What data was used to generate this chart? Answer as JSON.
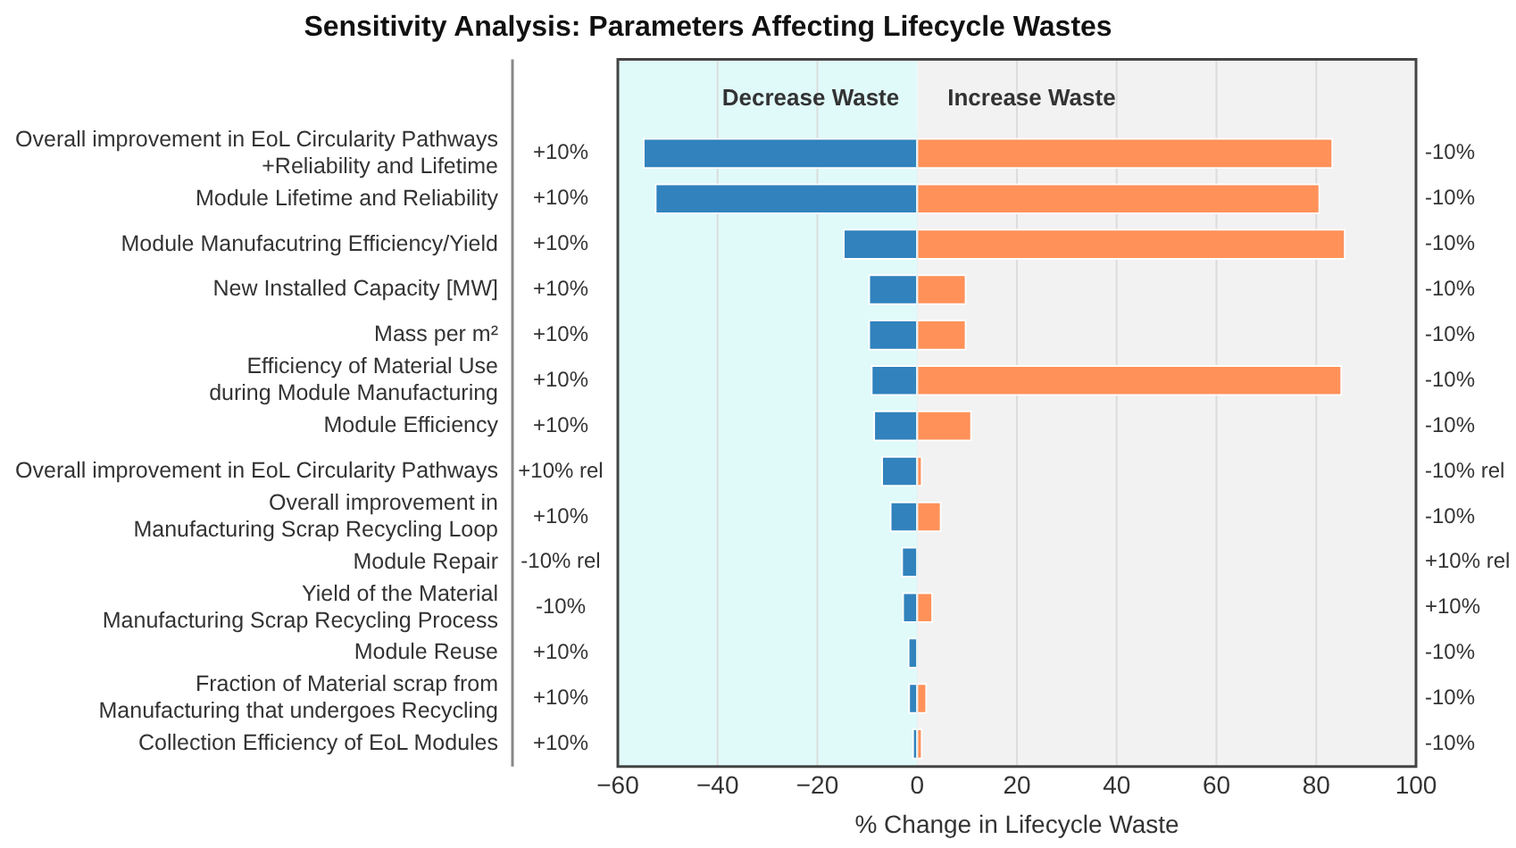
{
  "chart_data": {
    "type": "bar",
    "orientation": "horizontal",
    "stacked": true,
    "title": "Sensitivity Analysis: Parameters Affecting Lifecycle Wastes",
    "xlabel": "% Change in Lifecycle Waste",
    "categories": [
      "Overall improvement in EoL Circularity Pathways\n+Reliability and Lifetime",
      "Module Lifetime and Reliability",
      "Module Manufacutring Efficiency/Yield",
      "New Installed Capacity [MW]",
      "Mass per m²",
      "Efficiency of Material Use\nduring Module Manufacturing",
      "Module Efficiency",
      "Overall improvement in EoL Circularity Pathways",
      "Overall improvement in\nManufacturing Scrap Recycling Loop",
      "Module Repair",
      "Yield of the Material\nManufacturing Scrap Recycling Process",
      "Module Reuse",
      "Fraction of Material scrap from\nManufacturing that undergoes Recycling",
      "Collection Efficiency of EoL Modules"
    ],
    "series": [
      {
        "color": "#3182bd",
        "values": [
          -55,
          -52.6,
          -14.9,
          -9.8,
          -9.8,
          -9.3,
          -8.8,
          -7.2,
          -5.5,
          -3.2,
          -3.0,
          -1.9,
          -1.8,
          -1.0
        ]
      },
      {
        "color": "#ff9159",
        "values": [
          83.4,
          80.8,
          85.9,
          9.9,
          9.9,
          85.2,
          11.0,
          1.1,
          4.9,
          null,
          3.2,
          null,
          2.0,
          1.1
        ]
      }
    ],
    "xlim": [
      -60,
      100
    ],
    "xticks": [
      {
        "value": -60,
        "label": "−60"
      },
      {
        "value": -40,
        "label": "−40"
      },
      {
        "value": -20,
        "label": "−20"
      },
      0,
      20,
      40,
      60,
      80,
      100
    ],
    "grid": "x",
    "legend": false,
    "bands": [
      {
        "axis": "x",
        "from": -60,
        "to": 0,
        "label": "Decrease Waste",
        "color": "#e0fafa"
      },
      {
        "axis": "x",
        "from": 0,
        "to": 100,
        "label": "Increase Waste",
        "color": "#f2f2f2"
      }
    ],
    "annotations": [
      "+10%",
      "+10%",
      "+10%",
      "+10%",
      "+10%",
      "+10%",
      "+10%",
      "+10% rel",
      "+10%",
      "-10% rel",
      "-10%",
      "+10%",
      "+10%",
      "+10%",
      "-10%",
      "-10%",
      "-10%",
      "-10%",
      "-10%",
      "-10%",
      "-10%",
      "-10% rel",
      "-10%",
      "+10% rel",
      "+10%",
      "-10%",
      "-10%",
      "-10%"
    ]
  }
}
